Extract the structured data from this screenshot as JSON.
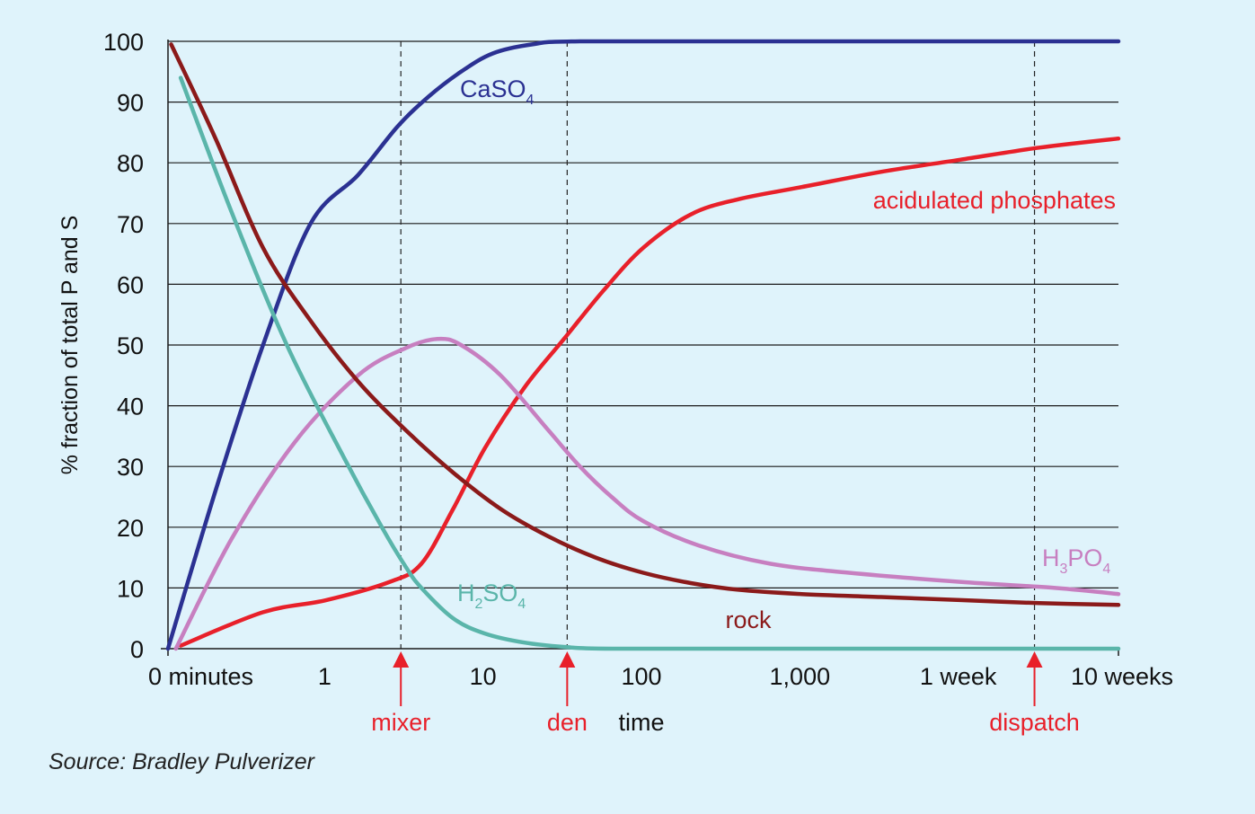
{
  "chart_data": {
    "type": "line",
    "ylabel": "% fraction of total P and S",
    "xlabel": "time",
    "ylim": [
      0,
      100
    ],
    "y_ticks": [
      "0",
      "10",
      "20",
      "30",
      "40",
      "50",
      "60",
      "70",
      "80",
      "90",
      "100"
    ],
    "x_scale": "log (time since start)",
    "x_ticks": [
      "0 minutes",
      "1",
      "10",
      "100",
      "1,000",
      "1 week",
      "10 weeks"
    ],
    "x_tick_positions": [
      0,
      1,
      2,
      3,
      4,
      5,
      6
    ],
    "grid": "horizontal",
    "markers": [
      {
        "label": "mixer",
        "x": 1.47
      },
      {
        "label": "den",
        "x": 2.52
      },
      {
        "label": "dispatch",
        "x": 5.47
      }
    ],
    "series": [
      {
        "name": "CaSO",
        "name_sub": "4",
        "color": "#2b3192",
        "points": [
          [
            0,
            0
          ],
          [
            0.3,
            26
          ],
          [
            0.6,
            50
          ],
          [
            0.9,
            70
          ],
          [
            1.2,
            78
          ],
          [
            1.45,
            86
          ],
          [
            1.65,
            91
          ],
          [
            1.85,
            95
          ],
          [
            2.05,
            98
          ],
          [
            2.3,
            99.5
          ],
          [
            2.6,
            100
          ],
          [
            4,
            100
          ],
          [
            6,
            100
          ]
        ]
      },
      {
        "name": "acidulated phosphates",
        "color": "#e8202a",
        "points": [
          [
            0.08,
            0.5
          ],
          [
            0.6,
            6
          ],
          [
            1.0,
            8
          ],
          [
            1.4,
            11
          ],
          [
            1.6,
            14
          ],
          [
            1.8,
            23
          ],
          [
            2.0,
            33
          ],
          [
            2.25,
            43
          ],
          [
            2.5,
            51
          ],
          [
            2.75,
            59
          ],
          [
            3.0,
            66
          ],
          [
            3.3,
            71.5
          ],
          [
            3.6,
            74
          ],
          [
            4.0,
            76
          ],
          [
            4.5,
            78.5
          ],
          [
            5.0,
            80.5
          ],
          [
            5.5,
            82.5
          ],
          [
            6.0,
            84
          ]
        ]
      },
      {
        "name": "H",
        "name_sub": "3",
        "name_mid": "PO",
        "name_sub2": "4",
        "color": "#c77fc0",
        "points": [
          [
            0.05,
            0
          ],
          [
            0.4,
            18
          ],
          [
            0.8,
            34
          ],
          [
            1.2,
            45
          ],
          [
            1.5,
            49.5
          ],
          [
            1.7,
            51
          ],
          [
            1.85,
            50
          ],
          [
            2.1,
            45
          ],
          [
            2.4,
            36
          ],
          [
            2.6,
            30
          ],
          [
            2.8,
            25
          ],
          [
            3.0,
            21
          ],
          [
            3.35,
            17
          ],
          [
            3.8,
            14
          ],
          [
            4.3,
            12.5
          ],
          [
            5.0,
            11
          ],
          [
            5.6,
            10
          ],
          [
            6.0,
            9
          ]
        ]
      },
      {
        "name": "rock",
        "color": "#8b1a1a",
        "points": [
          [
            0.02,
            99.5
          ],
          [
            0.3,
            84
          ],
          [
            0.6,
            66
          ],
          [
            0.9,
            54
          ],
          [
            1.2,
            44
          ],
          [
            1.5,
            36
          ],
          [
            1.8,
            29
          ],
          [
            2.1,
            23
          ],
          [
            2.4,
            18.5
          ],
          [
            2.7,
            15
          ],
          [
            3.0,
            12.5
          ],
          [
            3.3,
            10.8
          ],
          [
            3.6,
            9.7
          ],
          [
            4.0,
            9.0
          ],
          [
            4.5,
            8.5
          ],
          [
            5.0,
            8.0
          ],
          [
            5.5,
            7.5
          ],
          [
            6.0,
            7.2
          ]
        ]
      },
      {
        "name": "H",
        "name_sub": "2",
        "name_mid": "SO",
        "name_sub2": "4",
        "color": "#5ab5aa",
        "points": [
          [
            0.08,
            94
          ],
          [
            0.4,
            72
          ],
          [
            0.75,
            50
          ],
          [
            1.1,
            32
          ],
          [
            1.35,
            20
          ],
          [
            1.5,
            13.5
          ],
          [
            1.6,
            10
          ],
          [
            1.8,
            5
          ],
          [
            2.0,
            2.5
          ],
          [
            2.25,
            1
          ],
          [
            2.5,
            0.3
          ],
          [
            2.8,
            0
          ],
          [
            4,
            0
          ],
          [
            6,
            0
          ]
        ]
      }
    ]
  },
  "source_note": "Source: Bradley Pulverizer"
}
